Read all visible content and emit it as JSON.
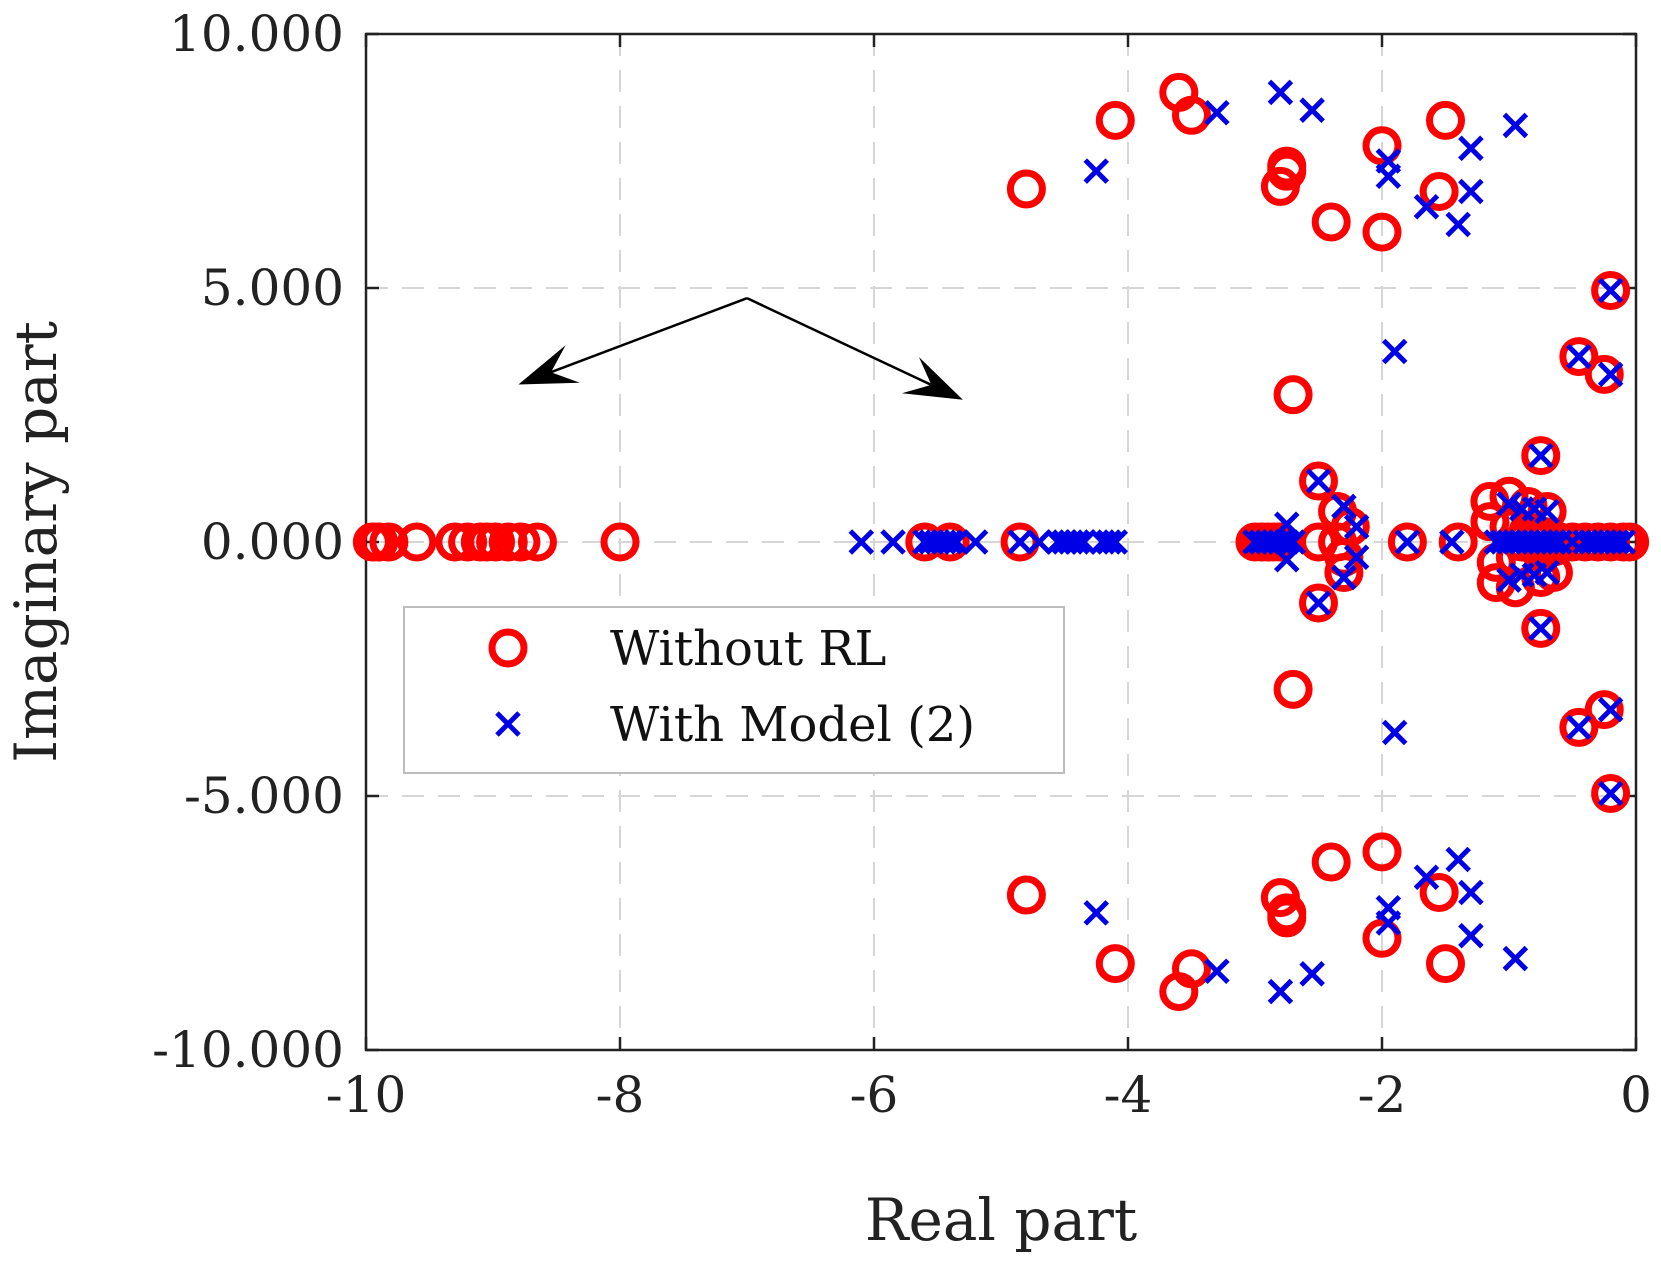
{
  "chart_data": {
    "type": "scatter",
    "title": "",
    "xlabel": "Real part",
    "ylabel": "Imaginary part",
    "xlim": [
      -10,
      0
    ],
    "ylim": [
      -10000,
      10000
    ],
    "x_ticks": [
      -10,
      -8,
      -6,
      -4,
      -2,
      0
    ],
    "x_tick_labels": [
      "-10",
      "-8",
      "-6",
      "-4",
      "-2",
      "0"
    ],
    "y_ticks": [
      10000,
      5000,
      0,
      -5000,
      -10000
    ],
    "y_tick_labels": [
      "10.000",
      "5.000",
      "0.000",
      "-5.000",
      "-10.000"
    ],
    "grid": true,
    "legend_location": "center-left",
    "colors": {
      "without_rl": "#ff0000",
      "with_model": "#0000e6",
      "axis": "#222222",
      "grid": "#d6d6d6",
      "arrow": "#000000"
    },
    "annotations": [
      {
        "type": "arrow",
        "from": [
          -7.0,
          4800
        ],
        "to": [
          -8.8,
          3100
        ]
      },
      {
        "type": "arrow",
        "from": [
          -7.0,
          4800
        ],
        "to": [
          -5.3,
          2800
        ]
      }
    ],
    "series": [
      {
        "name": "Without RL",
        "marker": "circle",
        "x": [
          -9.95,
          -9.9,
          -9.82,
          -9.6,
          -9.3,
          -9.2,
          -9.1,
          -9.05,
          -8.98,
          -8.88,
          -8.78,
          -8.65,
          -8.0,
          -5.6,
          -5.4,
          -4.85,
          -3.6,
          -3.5,
          -4.1,
          -4.8,
          -3.6,
          -3.5,
          -4.1,
          -4.8,
          -2.8,
          -2.75,
          -2.75,
          -2.4,
          -2.0,
          -2.0,
          -1.5,
          -1.55,
          -2.8,
          -2.75,
          -2.75,
          -2.4,
          -2.0,
          -2.0,
          -1.5,
          -1.55,
          -2.7,
          -2.7,
          -3.0,
          -2.95,
          -2.9,
          -2.85,
          -2.8,
          -2.5,
          -2.5,
          -2.5,
          -2.35,
          -2.3,
          -2.25,
          -2.3,
          -2.35,
          -1.8,
          -1.4,
          -1.15,
          -1.1,
          -1.0,
          -0.95,
          -0.85,
          -0.75,
          -0.7,
          -0.65,
          -1.15,
          -1.1,
          -1.0,
          -0.95,
          -0.85,
          -0.75,
          -0.7,
          -0.65,
          -0.9,
          -0.8,
          -0.6,
          -0.5,
          -0.4,
          -0.3,
          -0.2,
          -0.1,
          -0.05,
          -0.75,
          -0.75,
          -0.45,
          -0.45,
          -0.25,
          -0.25,
          -0.2,
          -0.2
        ],
        "y": [
          0,
          0,
          0,
          0,
          0,
          0,
          0,
          0,
          0,
          0,
          0,
          0,
          0,
          0,
          0,
          0,
          8850,
          8400,
          8300,
          6950,
          -8850,
          -8400,
          -8300,
          -6950,
          7000,
          7300,
          7400,
          6300,
          7800,
          6100,
          8300,
          6900,
          -7000,
          -7300,
          -7400,
          -6300,
          -7800,
          -6100,
          -8300,
          -6900,
          2900,
          -2900,
          0,
          0,
          0,
          0,
          0,
          1200,
          -1200,
          0,
          600,
          -600,
          300,
          -300,
          0,
          0,
          0,
          800,
          -800,
          900,
          -900,
          700,
          -700,
          600,
          -600,
          400,
          -400,
          300,
          -300,
          200,
          -200,
          100,
          -100,
          0,
          0,
          0,
          0,
          0,
          0,
          0,
          0,
          0,
          1700,
          -1700,
          3650,
          -3650,
          3300,
          -3300,
          4950,
          -4950
        ]
      },
      {
        "name": "With Model (2)",
        "marker": "x",
        "x": [
          -6.1,
          -5.85,
          -5.6,
          -5.55,
          -5.5,
          -5.45,
          -5.4,
          -5.35,
          -5.2,
          -4.85,
          -4.7,
          -4.55,
          -4.5,
          -4.45,
          -4.4,
          -4.35,
          -4.2,
          -4.15,
          -4.1,
          -3.3,
          -2.8,
          -2.55,
          -4.25,
          -1.95,
          -1.95,
          -1.65,
          -1.3,
          -1.3,
          -1.4,
          -0.95,
          -3.3,
          -2.8,
          -2.55,
          -4.25,
          -1.95,
          -1.95,
          -1.65,
          -1.3,
          -1.3,
          -1.4,
          -0.95,
          -1.9,
          -1.9,
          -3.0,
          -2.95,
          -2.9,
          -2.85,
          -2.8,
          -2.75,
          -2.7,
          -2.75,
          -2.75,
          -2.5,
          -2.5,
          -2.3,
          -2.3,
          -2.2,
          -2.2,
          -1.8,
          -1.45,
          -1.1,
          -1.05,
          -1.0,
          -0.95,
          -0.9,
          -0.85,
          -0.8,
          -0.75,
          -0.7,
          -0.65,
          -0.6,
          -1.0,
          -0.9,
          -0.8,
          -0.7,
          -1.0,
          -0.9,
          -0.8,
          -0.7,
          -0.5,
          -0.4,
          -0.35,
          -0.3,
          -0.25,
          -0.2,
          -0.15,
          -0.1,
          -0.75,
          -0.75,
          -0.45,
          -0.45,
          -0.2,
          -0.2,
          -0.2,
          -0.2
        ],
        "y": [
          0,
          0,
          0,
          0,
          0,
          0,
          0,
          0,
          0,
          0,
          0,
          0,
          0,
          0,
          0,
          0,
          0,
          0,
          0,
          8450,
          8850,
          8500,
          7300,
          7500,
          7200,
          6600,
          7750,
          6900,
          6250,
          8200,
          -8450,
          -8850,
          -8500,
          -7300,
          -7500,
          -7200,
          -6600,
          -7750,
          -6900,
          -6250,
          -8200,
          3750,
          -3750,
          0,
          0,
          0,
          0,
          0,
          0,
          0,
          350,
          -350,
          1200,
          -1200,
          700,
          -700,
          300,
          -300,
          0,
          0,
          0,
          0,
          0,
          0,
          0,
          0,
          0,
          0,
          0,
          0,
          0,
          750,
          650,
          650,
          600,
          -750,
          -650,
          -650,
          -600,
          0,
          0,
          0,
          0,
          0,
          0,
          0,
          0,
          1700,
          -1700,
          3650,
          -3650,
          3300,
          -3300,
          4950,
          -4950
        ]
      }
    ]
  }
}
